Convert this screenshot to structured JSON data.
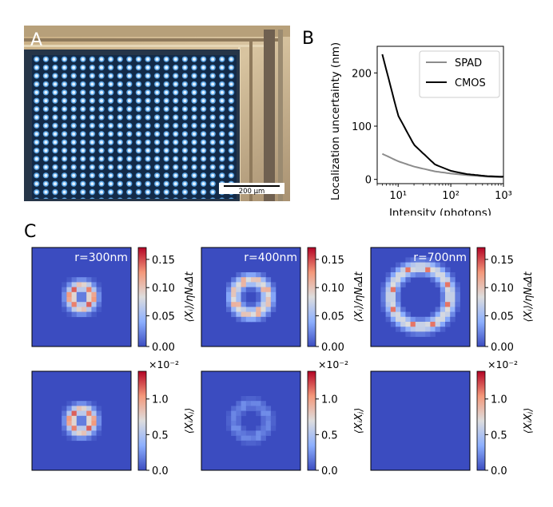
{
  "panels": {
    "a": {
      "letter": "A",
      "scalebar": "200 µm"
    },
    "b": {
      "letter": "B"
    },
    "c": {
      "letter": "C"
    }
  },
  "colors": {
    "spad": "#8c8c8c",
    "cmos": "#000000",
    "map_low": "#3b4cc0",
    "map_mid": "#dddddd",
    "map_high": "#b40426"
  },
  "chart_data": [
    {
      "type": "line",
      "panel": "B",
      "xlabel": "Intensity (photons)",
      "ylabel": "Localization uncertainty (nm)",
      "xscale": "log",
      "xlim": [
        4,
        1000
      ],
      "ylim": [
        -8,
        250
      ],
      "xticks": [
        10,
        100,
        1000
      ],
      "xtick_labels": [
        "10¹",
        "10²",
        "10³"
      ],
      "yticks": [
        0,
        100,
        200
      ],
      "legend_position": "top-right",
      "series": [
        {
          "name": "SPAD",
          "x": [
            5,
            10,
            20,
            50,
            100,
            200,
            500,
            1000
          ],
          "y": [
            48,
            34,
            24,
            15,
            11,
            8,
            5,
            4
          ]
        },
        {
          "name": "CMOS",
          "x": [
            5,
            10,
            20,
            50,
            100,
            200,
            500,
            1000
          ],
          "y": [
            235,
            120,
            65,
            28,
            16,
            10,
            6,
            5
          ]
        }
      ]
    },
    {
      "type": "heatmap",
      "panel": "C",
      "row_labels": [
        "⟨Xᵢ⟩/ηN₀Δt",
        "⟨XᵢXⱼ⟩"
      ],
      "titles": [
        "r=300nm",
        "r=400nm",
        "r=700nm"
      ],
      "rows": [
        {
          "colorbar_label": "⟨Xᵢ⟩/ηN₀Δt",
          "ticks": [
            "0.15",
            "0.10",
            "0.05",
            "0.00"
          ],
          "multiplier": "",
          "maps": [
            {
              "title": "r=300nm",
              "ring_radius_px": 0.11,
              "spots": 10,
              "peak": 1.0
            },
            {
              "title": "r=400nm",
              "ring_radius_px": 0.17,
              "spots": 8,
              "peak": 1.0
            },
            {
              "title": "r=700nm",
              "ring_radius_px": 0.3,
              "spots": 8,
              "peak": 1.0
            }
          ]
        },
        {
          "colorbar_label": "⟨XᵢXⱼ⟩",
          "ticks": [
            "1.0",
            "0.5",
            "0.0"
          ],
          "multiplier": "×10⁻²",
          "maps": [
            {
              "title": "",
              "ring_radius_px": 0.11,
              "spots": 10,
              "peak": 1.0
            },
            {
              "title": "",
              "ring_radius_px": 0.17,
              "spots": 8,
              "peak": 0.25
            },
            {
              "title": "",
              "ring_radius_px": 0.3,
              "spots": 8,
              "peak": 0.0
            }
          ]
        }
      ]
    }
  ]
}
